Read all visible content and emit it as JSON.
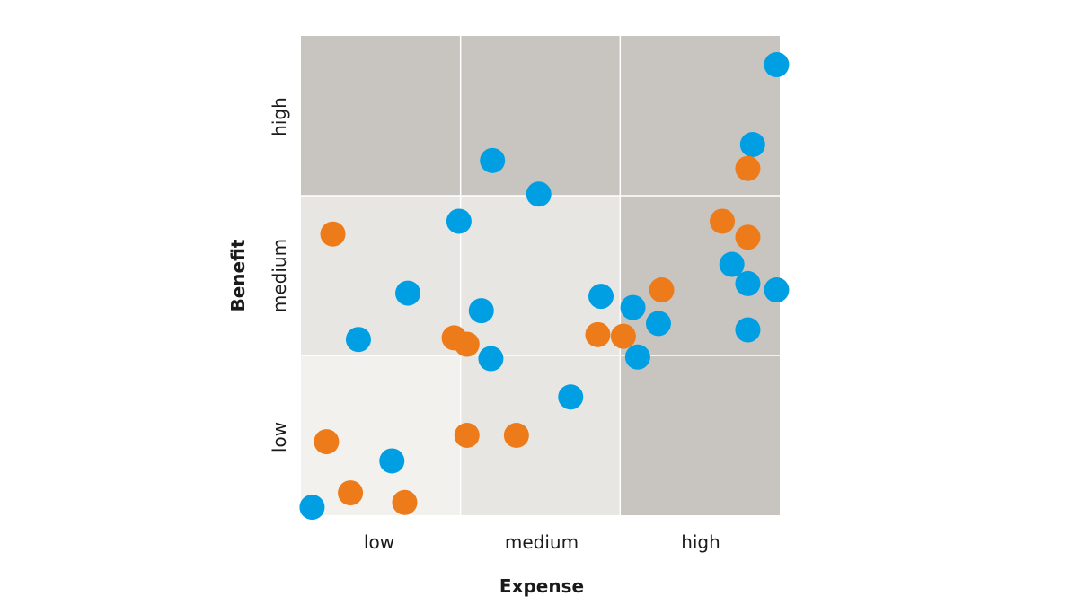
{
  "chart_data": {
    "type": "scatter",
    "xlabel": "Expense",
    "ylabel": "Benefit",
    "x_ticks": [
      "low",
      "medium",
      "high"
    ],
    "y_ticks": [
      "low",
      "medium",
      "high"
    ],
    "xlim": [
      0,
      3
    ],
    "ylim": [
      0,
      3
    ],
    "grid": true,
    "legend": "none",
    "cell_colors": {
      "light": "#f2f1ed",
      "mid": "#e8e6e2",
      "dark": "#c8c4c0"
    },
    "cell_shading": [
      [
        "light",
        "mid",
        "dark"
      ],
      [
        "mid",
        "mid",
        "dark"
      ],
      [
        "dark",
        "dark",
        "dark"
      ]
    ],
    "series": [
      {
        "color": "#009fe3",
        "points": [
          {
            "x": 2.98,
            "y": 2.82
          },
          {
            "x": 2.83,
            "y": 2.32
          },
          {
            "x": 1.2,
            "y": 2.22
          },
          {
            "x": 1.49,
            "y": 2.01
          },
          {
            "x": 0.99,
            "y": 1.84
          },
          {
            "x": 2.7,
            "y": 1.57
          },
          {
            "x": 2.8,
            "y": 1.45
          },
          {
            "x": 2.98,
            "y": 1.41
          },
          {
            "x": 0.67,
            "y": 1.39
          },
          {
            "x": 1.88,
            "y": 1.37
          },
          {
            "x": 1.13,
            "y": 1.28
          },
          {
            "x": 2.08,
            "y": 1.3
          },
          {
            "x": 2.24,
            "y": 1.2
          },
          {
            "x": 2.8,
            "y": 1.16
          },
          {
            "x": 0.36,
            "y": 1.1
          },
          {
            "x": 1.19,
            "y": 0.98
          },
          {
            "x": 2.11,
            "y": 0.99
          },
          {
            "x": 1.69,
            "y": 0.74
          },
          {
            "x": 0.57,
            "y": 0.34
          },
          {
            "x": 0.07,
            "y": 0.05
          }
        ]
      },
      {
        "color": "#ee7b1a",
        "points": [
          {
            "x": 2.8,
            "y": 2.17
          },
          {
            "x": 2.64,
            "y": 1.84
          },
          {
            "x": 2.8,
            "y": 1.74
          },
          {
            "x": 0.2,
            "y": 1.76
          },
          {
            "x": 2.26,
            "y": 1.41
          },
          {
            "x": 1.86,
            "y": 1.13
          },
          {
            "x": 2.02,
            "y": 1.12
          },
          {
            "x": 0.96,
            "y": 1.11
          },
          {
            "x": 1.04,
            "y": 1.07
          },
          {
            "x": 1.04,
            "y": 0.5
          },
          {
            "x": 1.35,
            "y": 0.5
          },
          {
            "x": 0.16,
            "y": 0.46
          },
          {
            "x": 0.31,
            "y": 0.14
          },
          {
            "x": 0.65,
            "y": 0.08
          }
        ]
      }
    ]
  }
}
